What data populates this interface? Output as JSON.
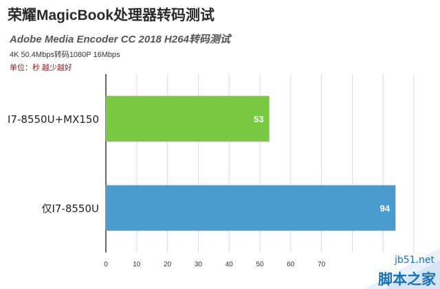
{
  "header": {
    "title": "荣耀MagicBook处理器转码测试",
    "subtitle": "Adobe Media Encoder CC 2018 H264转码测试",
    "test_desc": "4K 50.4Mbps转码1080P 16Mbps",
    "unit_note": "单位：秒 越少越好"
  },
  "chart_data": {
    "type": "bar",
    "orientation": "horizontal",
    "categories": [
      "I7-8550U+MX150",
      "仅I7-8550U"
    ],
    "series": [
      {
        "values": [
          53,
          94
        ],
        "colors": [
          "#7ac943",
          "#4a9bce"
        ]
      }
    ],
    "xlim": [
      0,
      100
    ],
    "x_ticks": [
      0,
      10,
      20,
      30,
      40,
      50,
      60,
      70
    ],
    "grid": true,
    "data_labels": true,
    "legend": "none"
  },
  "watermark": {
    "url": "jb51.net",
    "name": "脚本之家",
    "color": "#1a6fb3"
  }
}
